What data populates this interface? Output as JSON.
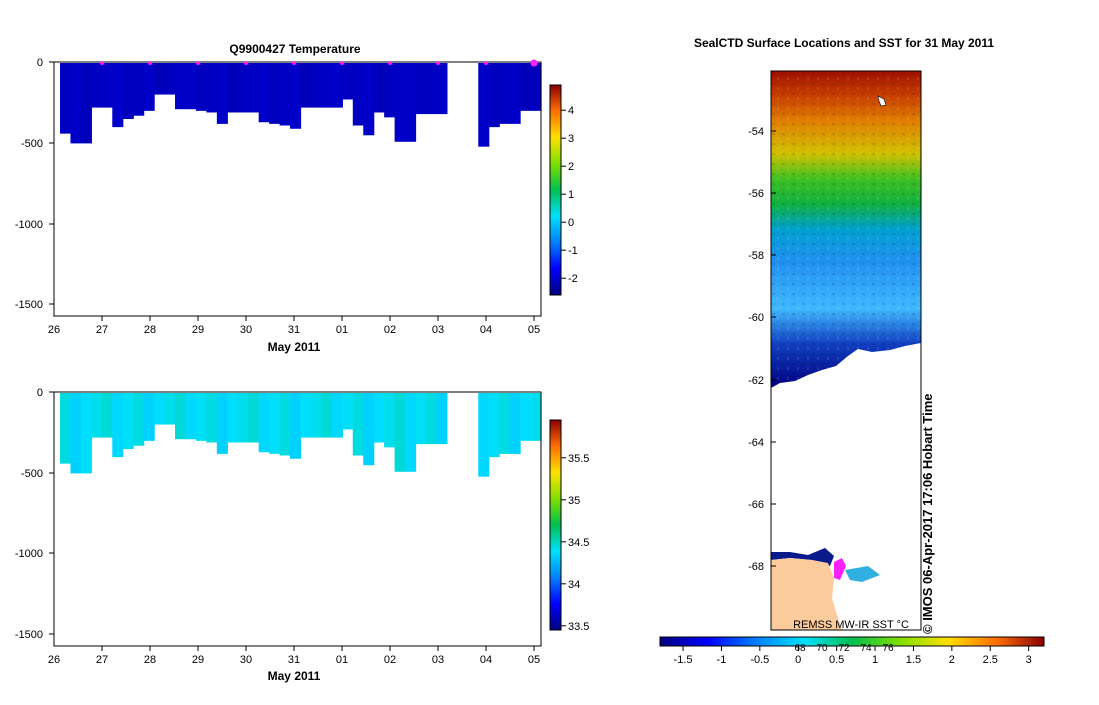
{
  "chart_data": [
    {
      "type": "heatmap",
      "title": "Q9900427  Temperature",
      "xlabel": "May 2011",
      "x_ticks": [
        "26",
        "27",
        "28",
        "29",
        "30",
        "31",
        "01",
        "02",
        "03",
        "04",
        "05"
      ],
      "y_ticks": [
        "0",
        "-500",
        "-1000",
        "-1500"
      ],
      "ylim": [
        -1560,
        0
      ],
      "colorbar_ticks": [
        "4",
        "3",
        "2",
        "1",
        "0",
        "-1",
        "-2"
      ],
      "colorbar_range": [
        -2.6,
        4.9
      ],
      "profile_depths_m": [
        -440,
        -500,
        -500,
        -280,
        -280,
        -400,
        -350,
        -330,
        -300,
        -200,
        -200,
        -290,
        -290,
        -300,
        -310,
        -380,
        -310,
        -310,
        -310,
        -370,
        -380,
        -390,
        -410,
        -280,
        -280,
        -280,
        -280,
        -230,
        -390,
        -450,
        -310,
        -340,
        -490,
        -490,
        -320,
        -320,
        -320,
        null,
        null,
        null,
        -520,
        -400,
        -380,
        -380,
        -300,
        -300
      ],
      "surface_marker_days": [
        "27",
        "28",
        "29",
        "30",
        "31",
        "01",
        "02",
        "03",
        "04",
        "05"
      ],
      "fill_value": -2.1
    },
    {
      "type": "heatmap",
      "title": "",
      "xlabel": "May 2011",
      "x_ticks": [
        "26",
        "27",
        "28",
        "29",
        "30",
        "31",
        "01",
        "02",
        "03",
        "04",
        "05"
      ],
      "y_ticks": [
        "0",
        "-500",
        "-1000",
        "-1500"
      ],
      "ylim": [
        -1560,
        0
      ],
      "colorbar_ticks": [
        "35.5",
        "35",
        "34.5",
        "34",
        "33.5"
      ],
      "colorbar_range": [
        33.45,
        35.95
      ],
      "profile_depths_m": [
        -440,
        -500,
        -500,
        -280,
        -280,
        -400,
        -350,
        -330,
        -300,
        -200,
        -200,
        -290,
        -290,
        -300,
        -310,
        -380,
        -310,
        -310,
        -310,
        -370,
        -380,
        -390,
        -410,
        -280,
        -280,
        -280,
        -280,
        -230,
        -390,
        -450,
        -310,
        -340,
        -490,
        -490,
        -320,
        -320,
        -320,
        null,
        null,
        null,
        -520,
        -400,
        -380,
        -380,
        -300,
        -300
      ],
      "fill_value": 34.4
    },
    {
      "type": "heatmap",
      "title": "SealCTD Surface Locations and SST for 31 May 2011",
      "y_ticks": [
        "-54",
        "-56",
        "-58",
        "-60",
        "-62",
        "-64",
        "-66",
        "-68"
      ],
      "ylim": [
        -70,
        -52
      ],
      "colorbar_ticks": [
        "-1.5",
        "-1",
        "-0.5",
        "0",
        "0.5",
        "1",
        "1.5",
        "2",
        "2.5",
        "3"
      ],
      "colorbar_range": [
        -1.8,
        3.2
      ],
      "colorbar_overlay_ticks": [
        "68",
        "70",
        "72",
        "74",
        "76"
      ],
      "sst_by_latitude": [
        [
          -52,
          2.9
        ],
        [
          -54,
          2.3
        ],
        [
          -55.5,
          1.2
        ],
        [
          -56,
          0.9
        ],
        [
          -57,
          0.4
        ],
        [
          -58,
          -0.4
        ],
        [
          -60,
          -0.8
        ],
        [
          -61.5,
          -1.4
        ],
        [
          -62,
          -1.6
        ]
      ],
      "source_label": "REMSS MW-IR SST °C",
      "credit": "© IMOS 06-Apr-2017 17:06 Hobart Time"
    }
  ]
}
